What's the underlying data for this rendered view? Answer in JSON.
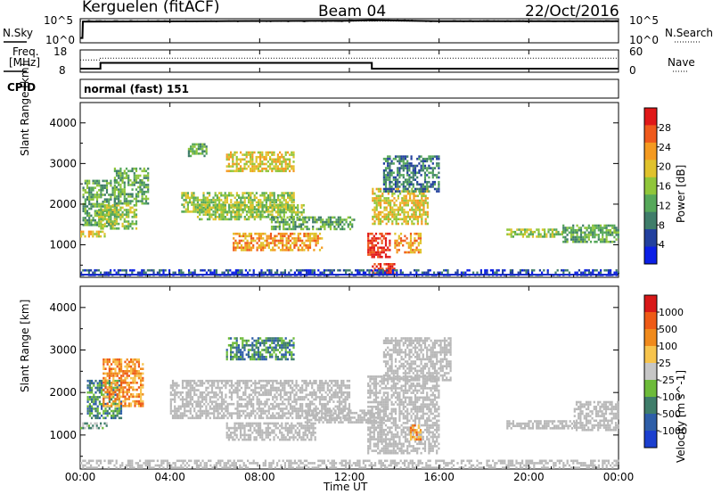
{
  "header": {
    "station": "Kerguelen (fitACF)",
    "beam": "Beam 04",
    "date": "22/Oct/2016"
  },
  "panels": {
    "nsky_label": "N.Sky",
    "nsky_ticks": [
      "10^5",
      "10^0"
    ],
    "nsearch_label": "N.Search",
    "nsearch_ticks": [
      "10^5",
      "10^0"
    ],
    "freq_label_line1": "Freq.",
    "freq_label_line2": "[MHz]",
    "freq_ticks": [
      "18",
      "8"
    ],
    "nave_label": "Nave",
    "nave_ticks": [
      "60",
      "0"
    ],
    "cpid_label": "CPID",
    "cpid_value": "normal (fast) 151"
  },
  "colors": {
    "power_scale": [
      "#0b1fe6",
      "#22409e",
      "#3f7d6a",
      "#56a85a",
      "#90c63a",
      "#e0c22c",
      "#f49a20",
      "#ef5a1c",
      "#e01818"
    ],
    "velocity_scale": [
      "#1b3fcf",
      "#2e5ea8",
      "#3f7d6a",
      "#6dbb3a",
      "#c6c6c6",
      "#f7c44d",
      "#f08a1c",
      "#ee5a16",
      "#d81818"
    ],
    "ground_scatter": "#b8b8b8"
  },
  "chart_data": [
    {
      "type": "line",
      "name": "nsky-nsearch",
      "x_range_hours": [
        0,
        24
      ],
      "series": [
        {
          "name": "N.Sky",
          "x": [
            0,
            0.1,
            0.12,
            6,
            12,
            13,
            16,
            20,
            24
          ],
          "y": [
            1,
            1,
            4.4,
            4.5,
            4.6,
            4.7,
            4.5,
            4.5,
            4.5
          ]
        },
        {
          "name": "N.Search",
          "x": [
            0,
            24
          ],
          "y": [
            4.5,
            4.5
          ]
        }
      ],
      "ylim": [
        0,
        5
      ]
    },
    {
      "type": "line",
      "name": "freq-nave",
      "xlim": [
        0,
        24
      ],
      "series": [
        {
          "name": "Freq.",
          "x": [
            0,
            0.9,
            0.9,
            13,
            13,
            24
          ],
          "y": [
            9.6,
            9.6,
            12.2,
            12.2,
            9.6,
            9.6
          ]
        },
        {
          "name": "Nave",
          "x": [
            0,
            0.9,
            0.9,
            24
          ],
          "y": [
            33,
            33,
            38,
            38
          ]
        }
      ],
      "ylim_freq": [
        8,
        18
      ],
      "ylim_nave": [
        0,
        60
      ]
    },
    {
      "type": "heatmap",
      "name": "power",
      "ylabel": "Slant Range [km]",
      "colorbar_label": "Power [dB]",
      "colorbar_ticks": [
        "28",
        "24",
        "20",
        "16",
        "12",
        "8",
        "4"
      ],
      "yticks": [
        "4000",
        "3000",
        "2000",
        "1000"
      ],
      "ylim": [
        200,
        4500
      ],
      "xlim": [
        0,
        24
      ],
      "regions": [
        {
          "t": [
            0.0,
            1.2
          ],
          "r": [
            1200,
            1350
          ],
          "level": 5
        },
        {
          "t": [
            0.1,
            1.5
          ],
          "r": [
            1500,
            2600
          ],
          "level": 3
        },
        {
          "t": [
            0.8,
            2.5
          ],
          "r": [
            1400,
            2000
          ],
          "level": 4
        },
        {
          "t": [
            1.5,
            3.0
          ],
          "r": [
            2000,
            2900
          ],
          "level": 3
        },
        {
          "t": [
            4.5,
            9.5
          ],
          "r": [
            1800,
            2300
          ],
          "level": 4
        },
        {
          "t": [
            5.2,
            10.0
          ],
          "r": [
            1650,
            2000
          ],
          "level": 4
        },
        {
          "t": [
            6.8,
            10.8
          ],
          "r": [
            900,
            1300
          ],
          "level": 6
        },
        {
          "t": [
            8.5,
            12.2
          ],
          "r": [
            1400,
            1700
          ],
          "level": 3
        },
        {
          "t": [
            6.5,
            9.5
          ],
          "r": [
            2800,
            3300
          ],
          "level": 5
        },
        {
          "t": [
            4.8,
            5.6
          ],
          "r": [
            3200,
            3500
          ],
          "level": 3
        },
        {
          "t": [
            12.8,
            13.8
          ],
          "r": [
            700,
            1300
          ],
          "level": 8
        },
        {
          "t": [
            13.0,
            15.5
          ],
          "r": [
            1500,
            2400
          ],
          "level": 5
        },
        {
          "t": [
            14.0,
            15.2
          ],
          "r": [
            800,
            1300
          ],
          "level": 6
        },
        {
          "t": [
            13.5,
            16.0
          ],
          "r": [
            2300,
            3200
          ],
          "level": 2
        },
        {
          "t": [
            13.0,
            14.0
          ],
          "r": [
            300,
            550
          ],
          "level": 8
        },
        {
          "t": [
            19.0,
            21.5
          ],
          "r": [
            1200,
            1400
          ],
          "level": 4
        },
        {
          "t": [
            21.5,
            24.0
          ],
          "r": [
            1100,
            1500
          ],
          "level": 3
        },
        {
          "t": [
            0.0,
            24.0
          ],
          "r": [
            240,
            400
          ],
          "level": 1
        }
      ]
    },
    {
      "type": "heatmap",
      "name": "velocity",
      "ylabel": "Slant Range [km]",
      "xlabel": "Time UT",
      "colorbar_label": "Velocity [m s^-1]",
      "colorbar_ticks": [
        "1000",
        "500",
        "100",
        "25",
        "-25",
        "-100",
        "-500",
        "-1000"
      ],
      "yticks": [
        "4000",
        "3000",
        "2000",
        "1000"
      ],
      "xticks": [
        "00:00",
        "04:00",
        "08:00",
        "12:00",
        "16:00",
        "20:00",
        "00:00"
      ],
      "ylim": [
        200,
        4500
      ],
      "xlim": [
        0,
        24
      ],
      "regions": [
        {
          "t": [
            0.0,
            1.2
          ],
          "r": [
            1150,
            1300
          ],
          "level": 3
        },
        {
          "t": [
            0.3,
            1.8
          ],
          "r": [
            1400,
            2300
          ],
          "level": 2
        },
        {
          "t": [
            1.0,
            2.8
          ],
          "r": [
            1700,
            2800
          ],
          "level": 6
        },
        {
          "t": [
            4.0,
            12.0
          ],
          "r": [
            1400,
            2300
          ],
          "gs": true
        },
        {
          "t": [
            6.5,
            10.5
          ],
          "r": [
            900,
            1300
          ],
          "gs": true
        },
        {
          "t": [
            10.0,
            13.5
          ],
          "r": [
            1300,
            1600
          ],
          "gs": true
        },
        {
          "t": [
            6.5,
            9.5
          ],
          "r": [
            2800,
            3300
          ],
          "level": 2
        },
        {
          "t": [
            12.8,
            16.0
          ],
          "r": [
            600,
            2400
          ],
          "gs": true
        },
        {
          "t": [
            13.5,
            16.5
          ],
          "r": [
            2300,
            3300
          ],
          "gs": true
        },
        {
          "t": [
            14.7,
            15.2
          ],
          "r": [
            900,
            1250
          ],
          "level": 6
        },
        {
          "t": [
            19.0,
            22.0
          ],
          "r": [
            1150,
            1350
          ],
          "gs": true
        },
        {
          "t": [
            22.0,
            24.0
          ],
          "r": [
            1100,
            1800
          ],
          "gs": true
        },
        {
          "t": [
            0.0,
            24.0
          ],
          "r": [
            240,
            420
          ],
          "gs": true
        }
      ]
    }
  ]
}
